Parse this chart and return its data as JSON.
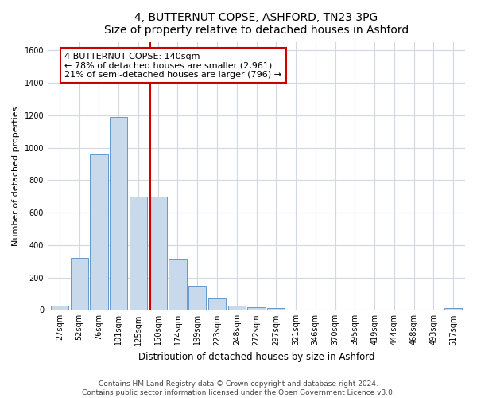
{
  "title": "4, BUTTERNUT COPSE, ASHFORD, TN23 3PG",
  "subtitle": "Size of property relative to detached houses in Ashford",
  "xlabel": "Distribution of detached houses by size in Ashford",
  "ylabel": "Number of detached properties",
  "categories": [
    "27sqm",
    "52sqm",
    "76sqm",
    "101sqm",
    "125sqm",
    "150sqm",
    "174sqm",
    "199sqm",
    "223sqm",
    "248sqm",
    "272sqm",
    "297sqm",
    "321sqm",
    "346sqm",
    "370sqm",
    "395sqm",
    "419sqm",
    "444sqm",
    "468sqm",
    "493sqm",
    "517sqm"
  ],
  "values": [
    25,
    320,
    960,
    1190,
    700,
    700,
    310,
    150,
    70,
    25,
    15,
    12,
    0,
    0,
    0,
    0,
    0,
    0,
    0,
    0,
    10
  ],
  "bar_color": "#c9d9ec",
  "bar_edge_color": "#6699cc",
  "vline_color": "#cc0000",
  "annotation_text": "4 BUTTERNUT COPSE: 140sqm\n← 78% of detached houses are smaller (2,961)\n21% of semi-detached houses are larger (796) →",
  "annotation_box_color": "#ffffff",
  "annotation_box_edge_color": "#cc0000",
  "ylim": [
    0,
    1650
  ],
  "yticks": [
    0,
    200,
    400,
    600,
    800,
    1000,
    1200,
    1400,
    1600
  ],
  "footnote": "Contains HM Land Registry data © Crown copyright and database right 2024.\nContains public sector information licensed under the Open Government Licence v3.0.",
  "background_color": "#ffffff",
  "grid_color": "#d0d8e8",
  "title_fontsize": 10,
  "xlabel_fontsize": 8.5,
  "ylabel_fontsize": 8,
  "tick_fontsize": 7,
  "annotation_fontsize": 8,
  "footnote_fontsize": 6.5
}
